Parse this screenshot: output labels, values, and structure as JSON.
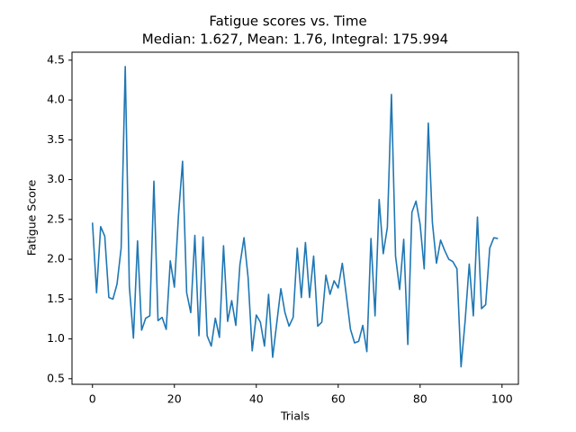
{
  "chart_data": {
    "type": "line",
    "title": "Fatigue scores vs. Time",
    "subtitle": "Median: 1.627, Mean: 1.76, Integral: 175.994",
    "xlabel": "Trials",
    "ylabel": "Fatigue Score",
    "xlim": [
      -5,
      104
    ],
    "ylim": [
      0.43,
      4.6
    ],
    "xticks": [
      0,
      20,
      40,
      60,
      80,
      100
    ],
    "yticks": [
      0.5,
      1.0,
      1.5,
      2.0,
      2.5,
      3.0,
      3.5,
      4.0,
      4.5
    ],
    "ytick_labels": [
      "0.5",
      "1.0",
      "1.5",
      "2.0",
      "2.5",
      "3.0",
      "3.5",
      "4.0",
      "4.5"
    ],
    "grid": false,
    "line_color": "#1f77b4",
    "series": [
      {
        "x": [
          0,
          1,
          2,
          3,
          4,
          5,
          6,
          7,
          8,
          9,
          10,
          11,
          12,
          13,
          14,
          15,
          16,
          17,
          18,
          19,
          20,
          21,
          22,
          23,
          24,
          25,
          26,
          27,
          28,
          29,
          30,
          31,
          32,
          33,
          34,
          35,
          36,
          37,
          38,
          39,
          40,
          41,
          42,
          43,
          44,
          45,
          46,
          47,
          48,
          49,
          50,
          51,
          52,
          53,
          54,
          55,
          56,
          57,
          58,
          59,
          60,
          61,
          62,
          63,
          64,
          65,
          66,
          67,
          68,
          69,
          70,
          71,
          72,
          73,
          74,
          75,
          76,
          77,
          78,
          79,
          80,
          81,
          82,
          83,
          84,
          85,
          86,
          87,
          88,
          89,
          90,
          91,
          92,
          93,
          94,
          95,
          96,
          97,
          98,
          99
        ],
        "values": [
          2.46,
          1.58,
          2.41,
          2.29,
          1.52,
          1.5,
          1.69,
          2.14,
          4.42,
          1.66,
          1.01,
          2.23,
          1.11,
          1.26,
          1.29,
          2.98,
          1.23,
          1.27,
          1.12,
          1.98,
          1.65,
          2.55,
          3.23,
          1.58,
          1.33,
          2.3,
          1.04,
          2.28,
          1.04,
          0.91,
          1.26,
          1.02,
          2.17,
          1.22,
          1.48,
          1.17,
          1.93,
          2.27,
          1.77,
          0.85,
          1.3,
          1.21,
          0.91,
          1.56,
          0.77,
          1.2,
          1.63,
          1.33,
          1.16,
          1.27,
          2.14,
          1.52,
          2.21,
          1.52,
          2.04,
          1.16,
          1.21,
          1.8,
          1.56,
          1.73,
          1.64,
          1.95,
          1.54,
          1.12,
          0.95,
          0.97,
          1.17,
          0.84,
          2.26,
          1.29,
          2.75,
          2.07,
          2.4,
          4.07,
          2.04,
          1.62,
          2.25,
          0.93,
          2.59,
          2.73,
          2.44,
          1.88,
          3.71,
          2.46,
          1.95,
          2.24,
          2.11,
          2.0,
          1.97,
          1.88,
          0.65,
          1.23,
          1.94,
          1.29,
          2.53,
          1.38,
          1.43,
          2.14,
          2.27,
          2.26
        ]
      }
    ]
  }
}
